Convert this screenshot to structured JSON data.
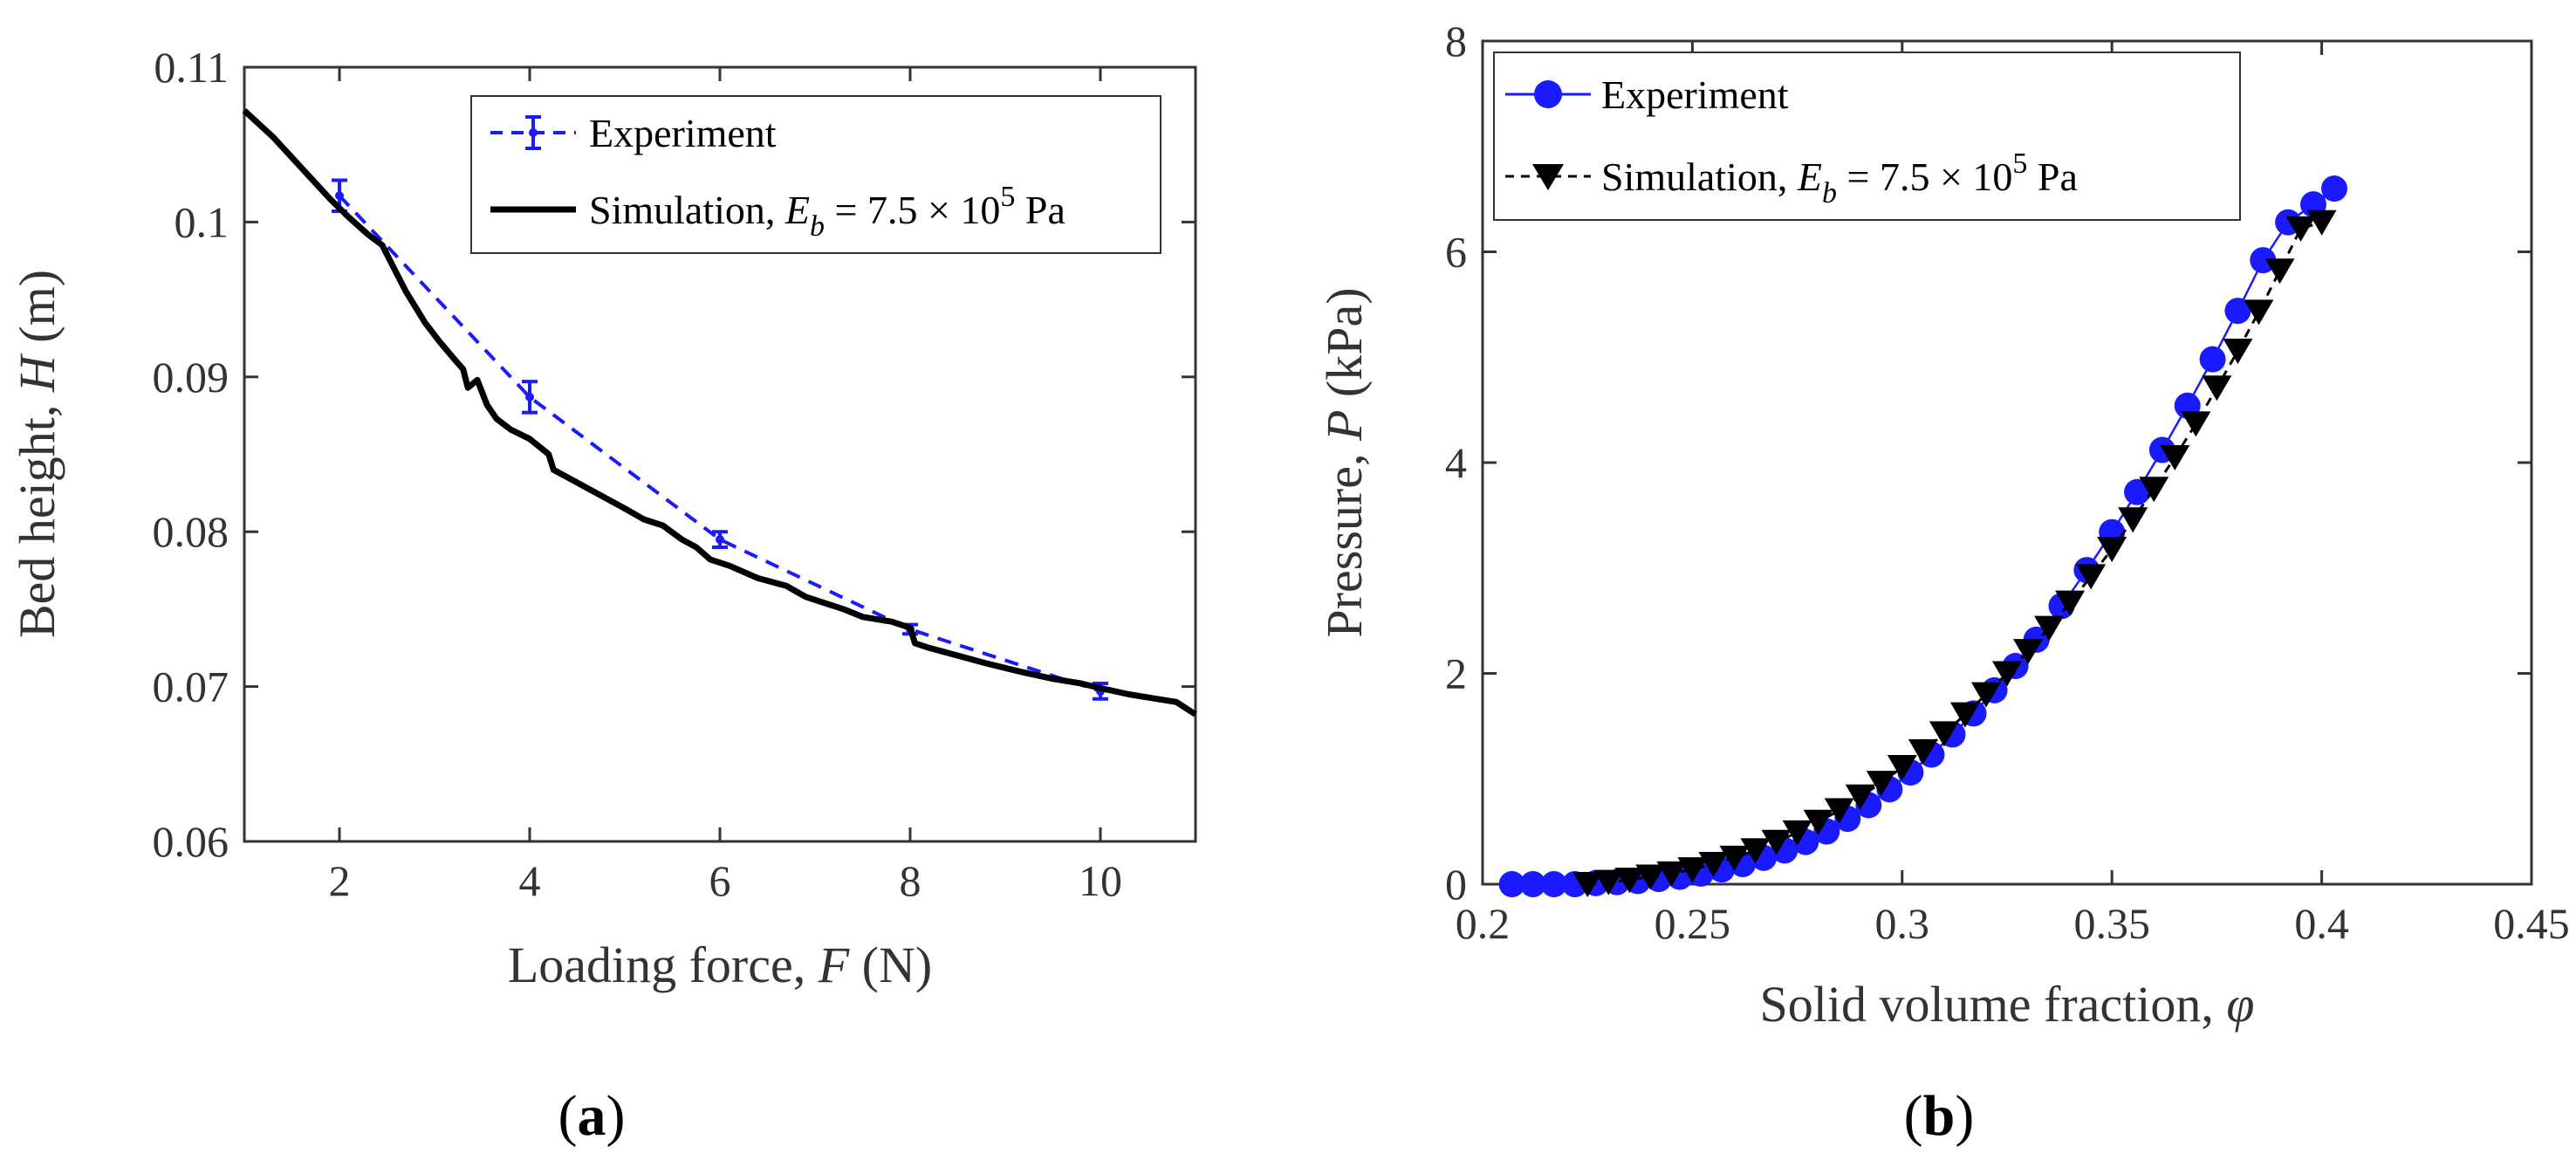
{
  "figure": {
    "panel_a_label": "a",
    "panel_b_label": "b"
  },
  "chart_data": [
    {
      "type": "line",
      "panel": "a",
      "title": "",
      "xlabel": "Loading force, F (N)",
      "xlabel_parts": {
        "prefix": "Loading force, ",
        "var": "F",
        "suffix": " (N)"
      },
      "ylabel": "Bed height, H (m)",
      "ylabel_parts": {
        "prefix": "Bed height, ",
        "var": "H",
        "suffix": " (m)"
      },
      "xlim": [
        1,
        11
      ],
      "ylim": [
        0.06,
        0.11
      ],
      "xticks": [
        2,
        4,
        6,
        8,
        10
      ],
      "xtick_labels": [
        "2",
        "4",
        "6",
        "8",
        "10"
      ],
      "yticks": [
        0.06,
        0.07,
        0.08,
        0.09,
        0.1,
        0.11
      ],
      "ytick_labels": [
        "0.06",
        "0.07",
        "0.08",
        "0.09",
        "0.1",
        "0.11"
      ],
      "grid": false,
      "legend_position": "top-right",
      "series": [
        {
          "name": "Experiment",
          "style": "dashed-errorbar",
          "color": "#1a1aff",
          "x": [
            2,
            4,
            6,
            8,
            10
          ],
          "y": [
            0.1017,
            0.0887,
            0.0795,
            0.0737,
            0.0697
          ],
          "err": [
            0.001,
            0.001,
            0.0005,
            0.0003,
            0.0005
          ]
        },
        {
          "name": "Simulation, E_b = 7.5 × 10^5 Pa",
          "legend_parts": {
            "prefix": "Simulation, ",
            "var": "E",
            "sub": "b",
            "mid": " = 7.5 × 10",
            "sup": "5",
            "suffix": "  Pa"
          },
          "style": "solid",
          "color": "#000000",
          "x": [
            1.0,
            1.3,
            1.6,
            1.9,
            2.1,
            2.3,
            2.45,
            2.55,
            2.7,
            2.9,
            3.05,
            3.2,
            3.3,
            3.35,
            3.45,
            3.55,
            3.65,
            3.8,
            4.0,
            4.2,
            4.25,
            4.4,
            4.7,
            5.0,
            5.2,
            5.4,
            5.6,
            5.75,
            5.9,
            6.1,
            6.4,
            6.7,
            6.9,
            7.0,
            7.3,
            7.5,
            7.8,
            8.0,
            8.05,
            8.2,
            8.5,
            8.8,
            9.0,
            9.2,
            9.5,
            9.8,
            10.0,
            10.3,
            10.6,
            10.8,
            11.0
          ],
          "y": [
            0.1072,
            0.1055,
            0.1035,
            0.1015,
            0.1003,
            0.0992,
            0.0985,
            0.0973,
            0.0955,
            0.0935,
            0.0923,
            0.0912,
            0.0905,
            0.0893,
            0.0898,
            0.0882,
            0.0873,
            0.0866,
            0.086,
            0.085,
            0.084,
            0.0835,
            0.0825,
            0.0815,
            0.0808,
            0.0804,
            0.0795,
            0.079,
            0.0782,
            0.0778,
            0.077,
            0.0765,
            0.0758,
            0.0756,
            0.075,
            0.0745,
            0.0742,
            0.0738,
            0.0728,
            0.0725,
            0.072,
            0.0715,
            0.0712,
            0.0709,
            0.0705,
            0.0702,
            0.0699,
            0.0695,
            0.0692,
            0.069,
            0.0682
          ]
        }
      ]
    },
    {
      "type": "scatter",
      "panel": "b",
      "title": "",
      "xlabel": "Solid volume fraction, φ",
      "xlabel_parts": {
        "prefix": "Solid volume fraction, ",
        "var": "φ"
      },
      "ylabel": "Pressure, P (kPa)",
      "ylabel_parts": {
        "prefix": "Pressure, ",
        "var": "P",
        "suffix": "  (kPa)"
      },
      "xlim": [
        0.2,
        0.45
      ],
      "ylim": [
        0,
        8
      ],
      "xticks": [
        0.2,
        0.25,
        0.3,
        0.35,
        0.4,
        0.45
      ],
      "xtick_labels": [
        "0.2",
        "0.25",
        "0.3",
        "0.35",
        "0.4",
        "0.45"
      ],
      "yticks": [
        0,
        2,
        4,
        6,
        8
      ],
      "ytick_labels": [
        "0",
        "2",
        "4",
        "6",
        "8"
      ],
      "grid": false,
      "legend_position": "top-left",
      "series": [
        {
          "name": "Experiment",
          "style": "circle-line",
          "color": "#1a1aff",
          "x": [
            0.207,
            0.212,
            0.217,
            0.222,
            0.227,
            0.232,
            0.237,
            0.242,
            0.247,
            0.252,
            0.257,
            0.262,
            0.267,
            0.272,
            0.277,
            0.282,
            0.287,
            0.292,
            0.297,
            0.302,
            0.307,
            0.312,
            0.317,
            0.322,
            0.327,
            0.332,
            0.338,
            0.344,
            0.35,
            0.356,
            0.362,
            0.368,
            0.374,
            0.38,
            0.386,
            0.392,
            0.398,
            0.403
          ],
          "y": [
            0.0,
            0.0,
            0.0,
            0.0,
            0.01,
            0.02,
            0.03,
            0.05,
            0.07,
            0.1,
            0.14,
            0.19,
            0.25,
            0.32,
            0.4,
            0.5,
            0.62,
            0.75,
            0.9,
            1.06,
            1.23,
            1.42,
            1.62,
            1.84,
            2.07,
            2.32,
            2.64,
            2.98,
            3.34,
            3.72,
            4.12,
            4.54,
            4.98,
            5.44,
            5.92,
            6.28,
            6.45,
            6.6
          ]
        },
        {
          "name": "Simulation, E_b = 7.5 × 10^5 Pa",
          "legend_parts": {
            "prefix": "Simulation, ",
            "var": "E",
            "sub": "b",
            "mid": " = 7.5 × 10",
            "sup": "5",
            "suffix": "  Pa"
          },
          "style": "triangle-dashed",
          "color": "#000000",
          "x": [
            0.225,
            0.23,
            0.235,
            0.24,
            0.245,
            0.25,
            0.255,
            0.26,
            0.265,
            0.27,
            0.275,
            0.28,
            0.285,
            0.29,
            0.295,
            0.3,
            0.305,
            0.31,
            0.315,
            0.32,
            0.325,
            0.33,
            0.335,
            0.34,
            0.345,
            0.35,
            0.355,
            0.36,
            0.365,
            0.37,
            0.375,
            0.38,
            0.385,
            0.39,
            0.395,
            0.4
          ],
          "y": [
            0.0,
            0.02,
            0.04,
            0.07,
            0.1,
            0.14,
            0.19,
            0.25,
            0.32,
            0.4,
            0.49,
            0.59,
            0.7,
            0.83,
            0.96,
            1.11,
            1.26,
            1.43,
            1.61,
            1.8,
            2.0,
            2.21,
            2.43,
            2.67,
            2.92,
            3.18,
            3.46,
            3.75,
            4.05,
            4.37,
            4.71,
            5.06,
            5.43,
            5.82,
            6.22,
            6.28
          ]
        }
      ]
    }
  ]
}
